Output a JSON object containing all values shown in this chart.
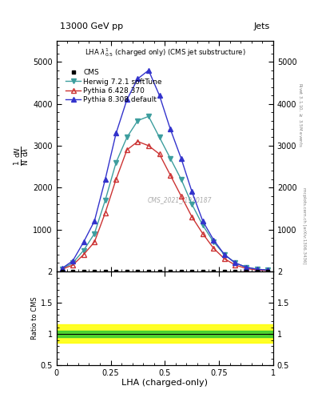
{
  "title_top": "13000 GeV pp",
  "title_right": "Jets",
  "plot_title": "LHA $\\lambda^{1}_{0.5}$ (charged only) (CMS jet substructure)",
  "xlabel": "LHA (charged-only)",
  "ylabel_main_parts": [
    "$\\mathrm{d}N$",
    "$\\mathrm{d}\\lambda$",
    "$\\mathrm{d}^2N$",
    "$\\mathrm{N}$"
  ],
  "ylabel_ratio": "Ratio to CMS",
  "right_label_top": "Rivet 3.1.10, $\\geq$ 3.5M events",
  "right_label_bot": "mcplots.cern.ch [arXiv:1306.3436]",
  "watermark": "CMS_2021_I1920187",
  "xlim": [
    0,
    1
  ],
  "ylim_main": [
    0,
    5500
  ],
  "ylim_ratio": [
    0.5,
    2.0
  ],
  "yticks_main": [
    1000,
    2000,
    3000,
    4000,
    5000
  ],
  "ytick_labels_main": [
    "1000",
    "2000",
    "3000",
    "4000",
    "5000"
  ],
  "yticks_ratio": [
    0.5,
    1.0,
    1.5,
    2.0
  ],
  "ytick_labels_ratio": [
    "0.5",
    "1",
    "1.5",
    "2"
  ],
  "x_data": [
    0.025,
    0.075,
    0.125,
    0.175,
    0.225,
    0.275,
    0.325,
    0.375,
    0.425,
    0.475,
    0.525,
    0.575,
    0.625,
    0.675,
    0.725,
    0.775,
    0.825,
    0.875,
    0.925,
    0.975
  ],
  "cms_y": [
    5,
    5,
    5,
    5,
    5,
    5,
    5,
    5,
    5,
    5,
    5,
    5,
    5,
    5,
    5,
    5,
    5,
    5,
    5,
    5
  ],
  "herwig_y": [
    60,
    200,
    500,
    900,
    1700,
    2600,
    3200,
    3600,
    3700,
    3200,
    2700,
    2200,
    1600,
    1100,
    700,
    400,
    200,
    100,
    50,
    30
  ],
  "pythia6_y": [
    50,
    150,
    400,
    700,
    1400,
    2200,
    2900,
    3100,
    3000,
    2800,
    2300,
    1800,
    1300,
    900,
    550,
    300,
    150,
    70,
    30,
    20
  ],
  "pythia8_y": [
    70,
    250,
    700,
    1200,
    2200,
    3300,
    4100,
    4600,
    4800,
    4200,
    3400,
    2700,
    1900,
    1200,
    750,
    400,
    200,
    100,
    50,
    30
  ],
  "herwig_color": "#3d9e9e",
  "pythia6_color": "#cc3333",
  "pythia8_color": "#3333cc",
  "cms_color": "#000000",
  "ratio_green_band": 0.05,
  "ratio_yellow_band": 0.15,
  "legend_entries": [
    "CMS",
    "Herwig 7.2.1 softTune",
    "Pythia 6.428 370",
    "Pythia 8.308 default"
  ],
  "fig_width": 3.93,
  "fig_height": 5.12,
  "dpi": 100
}
